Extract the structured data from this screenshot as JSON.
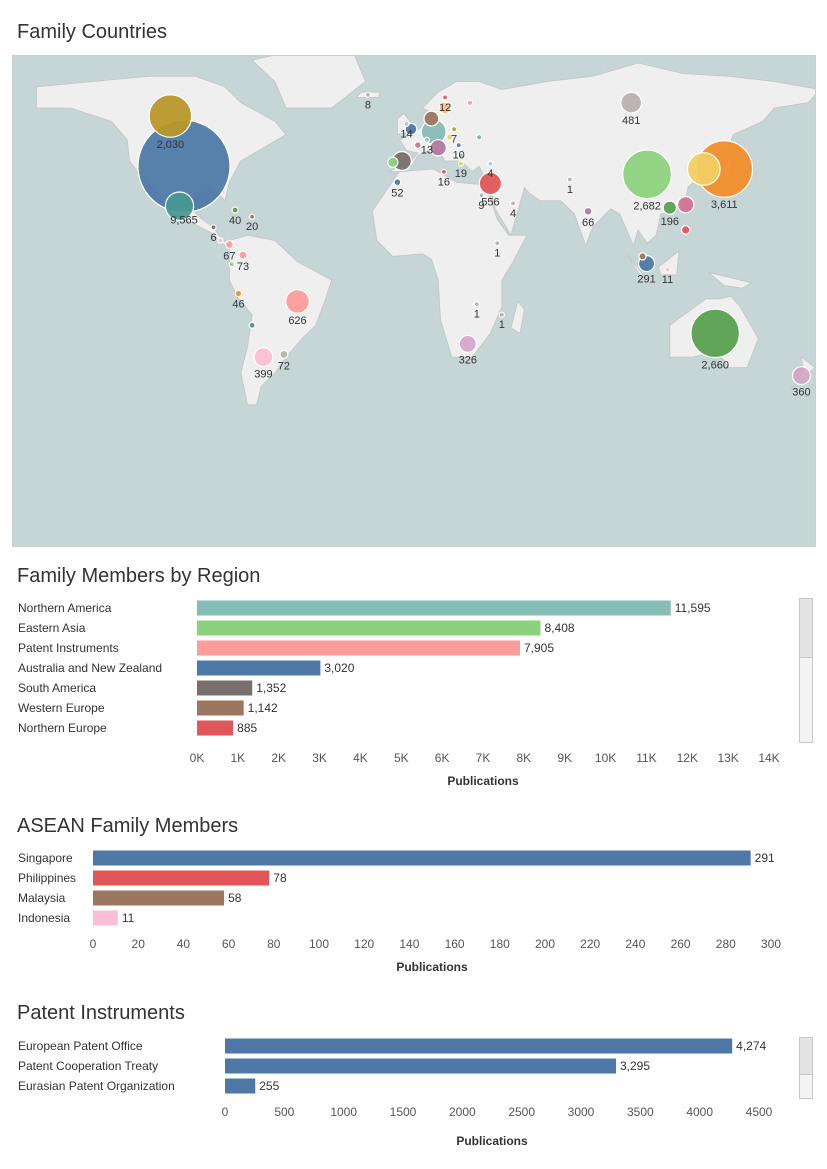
{
  "sections": {
    "map_title": "Family Countries",
    "region_title": "Family Members by Region",
    "asean_title": "ASEAN Family Members",
    "instruments_title": "Patent Instruments"
  },
  "colors": {
    "ocean": "#c6d6d6",
    "land": "#efefef",
    "border": "#c4c4c4",
    "axis_text": "#555555",
    "label_text": "#333333"
  },
  "chart_data": [
    {
      "type": "scatter",
      "name": "Family Countries",
      "title": "Family Countries",
      "marker": "bubble map",
      "points": [
        {
          "label": "9,565",
          "lon": -100,
          "lat": 38,
          "value": 9565,
          "color": "#4e79a7"
        },
        {
          "label": "2,030",
          "lon": -106,
          "lat": 57,
          "value": 2030,
          "color": "#b9972a"
        },
        {
          "label": "",
          "lon": -102,
          "lat": 23,
          "value": 900,
          "color": "#499894"
        },
        {
          "label": "3,611",
          "lon": 138,
          "lat": 37,
          "value": 3611,
          "color": "#f28e2b"
        },
        {
          "label": "",
          "lon": 129,
          "lat": 37,
          "value": 1200,
          "color": "#f1ce63"
        },
        {
          "label": "2,682",
          "lon": 104,
          "lat": 35,
          "value": 2682,
          "color": "#8cd17d"
        },
        {
          "label": "2,660",
          "lon": 134,
          "lat": -25,
          "value": 2660,
          "color": "#59a14f"
        },
        {
          "label": "",
          "lon": 121,
          "lat": 23.5,
          "value": 300,
          "color": "#d37295"
        },
        {
          "label": "196",
          "lon": 114,
          "lat": 22.4,
          "value": 196,
          "color": "#59a14f"
        },
        {
          "label": "",
          "lon": 121,
          "lat": 14,
          "value": 78,
          "color": "#e15759"
        },
        {
          "label": "291",
          "lon": 103.8,
          "lat": 1.3,
          "value": 291,
          "color": "#4e79a7"
        },
        {
          "label": "",
          "lon": 102,
          "lat": 4,
          "value": 58,
          "color": "#9d7660"
        },
        {
          "label": "11",
          "lon": 113,
          "lat": -1,
          "value": 11,
          "color": "#fabfd2"
        },
        {
          "label": "66",
          "lon": 78,
          "lat": 21,
          "value": 66,
          "color": "#b07aa1"
        },
        {
          "label": "1",
          "lon": 70,
          "lat": 33,
          "value": 1,
          "color": "#bab0ac"
        },
        {
          "label": "481",
          "lon": 97,
          "lat": 62,
          "value": 481,
          "color": "#bab0ac"
        },
        {
          "label": "556",
          "lon": 35,
          "lat": 31.5,
          "value": 556,
          "color": "#e15759"
        },
        {
          "label": "9",
          "lon": 31,
          "lat": 27,
          "value": 9,
          "color": "#bab0ac"
        },
        {
          "label": "4",
          "lon": 35,
          "lat": 39,
          "value": 4,
          "color": "#a0cbe8"
        },
        {
          "label": "4",
          "lon": 45,
          "lat": 24,
          "value": 4,
          "color": "#bab0ac"
        },
        {
          "label": "1",
          "lon": 38,
          "lat": 9,
          "value": 1,
          "color": "#bab0ac"
        },
        {
          "label": "1",
          "lon": 29,
          "lat": -14,
          "value": 1,
          "color": "#bab0ac"
        },
        {
          "label": "1",
          "lon": 40,
          "lat": -18,
          "value": 1,
          "color": "#bab0ac"
        },
        {
          "label": "326",
          "lon": 25,
          "lat": -29,
          "value": 326,
          "color": "#d4a6c8"
        },
        {
          "label": "12",
          "lon": 15,
          "lat": 64,
          "value": 12,
          "color": "#e15759"
        },
        {
          "label": "",
          "lon": 26,
          "lat": 62,
          "value": 30,
          "color": "#ff9d9a"
        },
        {
          "label": "",
          "lon": 15,
          "lat": 60,
          "value": 150,
          "color": "#ffbe7d"
        },
        {
          "label": "",
          "lon": 9,
          "lat": 56,
          "value": 250,
          "color": "#9d7660"
        },
        {
          "label": "7",
          "lon": 19,
          "lat": 52,
          "value": 7,
          "color": "#b9972a"
        },
        {
          "label": "",
          "lon": 10,
          "lat": 51,
          "value": 700,
          "color": "#86bcb6"
        },
        {
          "label": "14",
          "lon": -2,
          "lat": 54,
          "value": 14,
          "color": "#a0cbe8"
        },
        {
          "label": "",
          "lon": 0,
          "lat": 52,
          "value": 150,
          "color": "#4e79a7"
        },
        {
          "label": "",
          "lon": 17,
          "lat": 49,
          "value": 40,
          "color": "#f1ce63"
        },
        {
          "label": "",
          "lon": 30,
          "lat": 49,
          "value": 30,
          "color": "#76b7b2"
        },
        {
          "label": "10",
          "lon": 21,
          "lat": 46,
          "value": 10,
          "color": "#4e79a7"
        },
        {
          "label": "",
          "lon": 12,
          "lat": 45,
          "value": 300,
          "color": "#b07aa1"
        },
        {
          "label": "",
          "lon": 3,
          "lat": 46,
          "value": 50,
          "color": "#d37295"
        },
        {
          "label": "13",
          "lon": 7,
          "lat": 48,
          "value": 13,
          "color": "#bab0ac"
        },
        {
          "label": "",
          "lon": 22,
          "lat": 42,
          "value": 20,
          "color": "#86bcb6"
        },
        {
          "label": "19",
          "lon": 22,
          "lat": 39,
          "value": 19,
          "color": "#f1ce63"
        },
        {
          "label": "",
          "lon": -4,
          "lat": 40,
          "value": 400,
          "color": "#79706e"
        },
        {
          "label": "",
          "lon": -8,
          "lat": 39.5,
          "value": 120,
          "color": "#8cd17d"
        },
        {
          "label": "16",
          "lon": 14.5,
          "lat": 35.9,
          "value": 16,
          "color": "#e15759"
        },
        {
          "label": "52",
          "lon": -6,
          "lat": 32,
          "value": 52,
          "color": "#4e79a7"
        },
        {
          "label": "8",
          "lon": -19,
          "lat": 65,
          "value": 8,
          "color": "#bab0ac"
        },
        {
          "label": "40",
          "lon": -77.5,
          "lat": 21.5,
          "value": 40,
          "color": "#59a14f"
        },
        {
          "label": "20",
          "lon": -70,
          "lat": 19,
          "value": 20,
          "color": "#9d7660"
        },
        {
          "label": "6",
          "lon": -87,
          "lat": 15,
          "value": 6,
          "color": "#79706e"
        },
        {
          "label": "",
          "lon": -84,
          "lat": 10,
          "value": 30,
          "color": "#fabfd2"
        },
        {
          "label": "67",
          "lon": -80,
          "lat": 8.5,
          "value": 67,
          "color": "#ff9d9a"
        },
        {
          "label": "",
          "lon": -79,
          "lat": 1,
          "value": 15,
          "color": "#8cd17d"
        },
        {
          "label": "73",
          "lon": -74,
          "lat": 4.5,
          "value": 73,
          "color": "#ff9d9a"
        },
        {
          "label": "46",
          "lon": -76,
          "lat": -10,
          "value": 46,
          "color": "#f28e2b"
        },
        {
          "label": "626",
          "lon": -50,
          "lat": -13,
          "value": 626,
          "color": "#ff9d9a"
        },
        {
          "label": "",
          "lon": -70,
          "lat": -22,
          "value": 40,
          "color": "#499894"
        },
        {
          "label": "399",
          "lon": -65,
          "lat": -34,
          "value": 399,
          "color": "#fabfd2"
        },
        {
          "label": "72",
          "lon": -56,
          "lat": -33,
          "value": 72,
          "color": "#bab0ac"
        },
        {
          "label": "360",
          "lon": 172,
          "lat": -41,
          "value": 360,
          "color": "#d4a6c8"
        }
      ]
    },
    {
      "type": "bar",
      "name": "Family Members by Region",
      "title": "Family Members by Region",
      "orientation": "horizontal",
      "categories": [
        "Northern America",
        "Eastern Asia",
        "Patent Instruments",
        "Australia and New Zealand",
        "South America",
        "Western Europe",
        "Northern Europe"
      ],
      "values": [
        11595,
        8408,
        7905,
        3020,
        1352,
        1142,
        885
      ],
      "value_labels": [
        "11,595",
        "8,408",
        "7,905",
        "3,020",
        "1,352",
        "1,142",
        "885"
      ],
      "colors": [
        "#86bcb6",
        "#8cd17d",
        "#ff9d9a",
        "#4e79a7",
        "#79706e",
        "#9d7660",
        "#e15759"
      ],
      "xlabel": "Publications",
      "xlim": [
        0,
        14000
      ],
      "ticks": [
        0,
        1000,
        2000,
        3000,
        4000,
        5000,
        6000,
        7000,
        8000,
        9000,
        10000,
        11000,
        12000,
        13000,
        14000
      ],
      "tick_labels": [
        "0K",
        "1K",
        "2K",
        "3K",
        "4K",
        "5K",
        "6K",
        "7K",
        "8K",
        "9K",
        "10K",
        "11K",
        "12K",
        "13K",
        "14K"
      ],
      "scrollbar": true
    },
    {
      "type": "bar",
      "name": "ASEAN Family Members",
      "title": "ASEAN Family Members",
      "orientation": "horizontal",
      "categories": [
        "Singapore",
        "Philippines",
        "Malaysia",
        "Indonesia"
      ],
      "values": [
        291,
        78,
        58,
        11
      ],
      "value_labels": [
        "291",
        "78",
        "58",
        "11"
      ],
      "colors": [
        "#4e79a7",
        "#e15759",
        "#9d7660",
        "#fabfd2"
      ],
      "xlabel": "Publications",
      "xlim": [
        0,
        300
      ],
      "ticks": [
        0,
        20,
        40,
        60,
        80,
        100,
        120,
        140,
        160,
        180,
        200,
        220,
        240,
        260,
        280,
        300
      ],
      "tick_labels": [
        "0",
        "20",
        "40",
        "60",
        "80",
        "100",
        "120",
        "140",
        "160",
        "180",
        "200",
        "220",
        "240",
        "260",
        "280",
        "300"
      ],
      "scrollbar": false
    },
    {
      "type": "bar",
      "name": "Patent Instruments",
      "title": "Patent Instruments",
      "orientation": "horizontal",
      "categories": [
        "European Patent Office",
        "Patent Cooperation Treaty",
        "Eurasian Patent Organization"
      ],
      "values": [
        4274,
        3295,
        255
      ],
      "value_labels": [
        "4,274",
        "3,295",
        "255"
      ],
      "colors": [
        "#4e79a7",
        "#4e79a7",
        "#4e79a7"
      ],
      "xlabel": "Publications",
      "xlim": [
        0,
        4500
      ],
      "ticks": [
        0,
        500,
        1000,
        1500,
        2000,
        2500,
        3000,
        3500,
        4000,
        4500
      ],
      "tick_labels": [
        "0",
        "500",
        "1000",
        "1500",
        "2000",
        "2500",
        "3000",
        "3500",
        "4000",
        "4500"
      ],
      "scrollbar": true
    }
  ]
}
